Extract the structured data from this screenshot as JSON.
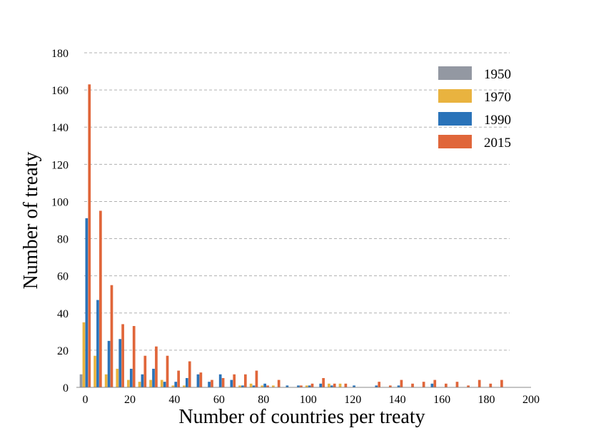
{
  "chart_data": {
    "type": "bar",
    "title": "",
    "xlabel": "Number of countries per treaty",
    "ylabel": "Number of treaty",
    "xlim": [
      -4,
      200
    ],
    "ylim": [
      0,
      180
    ],
    "x_ticks": [
      0,
      20,
      40,
      60,
      80,
      100,
      120,
      140,
      160,
      180,
      200
    ],
    "y_ticks": [
      0,
      20,
      40,
      60,
      80,
      100,
      120,
      140,
      160,
      180
    ],
    "grid": "horizontal-dashed",
    "legend_position": "top-right",
    "bin_width": 5,
    "x": [
      0,
      5,
      10,
      15,
      20,
      25,
      30,
      35,
      40,
      45,
      50,
      55,
      60,
      65,
      70,
      75,
      80,
      85,
      90,
      95,
      100,
      105,
      110,
      115,
      120,
      125,
      130,
      135,
      140,
      145,
      150,
      155,
      160,
      165,
      170,
      175,
      180,
      185
    ],
    "series": [
      {
        "name": "1950",
        "color": "#9398a2",
        "values": [
          7,
          0,
          0,
          0,
          0,
          0,
          0,
          0,
          0,
          0,
          0,
          0,
          0,
          0,
          0,
          0,
          0,
          0,
          0,
          0,
          0,
          0,
          0,
          0,
          0,
          0,
          0,
          0,
          0,
          0,
          0,
          0,
          0,
          0,
          0,
          0,
          0,
          0
        ]
      },
      {
        "name": "1970",
        "color": "#e9b33f",
        "values": [
          35,
          17,
          7,
          10,
          4,
          3,
          4,
          4,
          1,
          1,
          0,
          0,
          0,
          0,
          1,
          2,
          1,
          1,
          0,
          0,
          1,
          0,
          2,
          2,
          0,
          0,
          0,
          0,
          0,
          0,
          0,
          0,
          0,
          0,
          0,
          0,
          0,
          0
        ]
      },
      {
        "name": "1990",
        "color": "#2a73b9",
        "values": [
          91,
          47,
          25,
          26,
          10,
          7,
          10,
          3,
          3,
          5,
          7,
          3,
          7,
          4,
          1,
          1,
          2,
          0,
          1,
          1,
          1,
          2,
          1,
          0,
          1,
          0,
          1,
          0,
          1,
          0,
          0,
          2,
          0,
          0,
          0,
          0,
          0,
          0
        ]
      },
      {
        "name": "2015",
        "color": "#e0663a",
        "values": [
          163,
          95,
          55,
          34,
          33,
          17,
          22,
          17,
          9,
          14,
          8,
          4,
          5,
          7,
          7,
          9,
          1,
          4,
          0,
          1,
          2,
          5,
          2,
          2,
          0,
          0,
          3,
          1,
          4,
          2,
          3,
          4,
          2,
          3,
          1,
          4,
          2,
          4
        ]
      }
    ]
  }
}
